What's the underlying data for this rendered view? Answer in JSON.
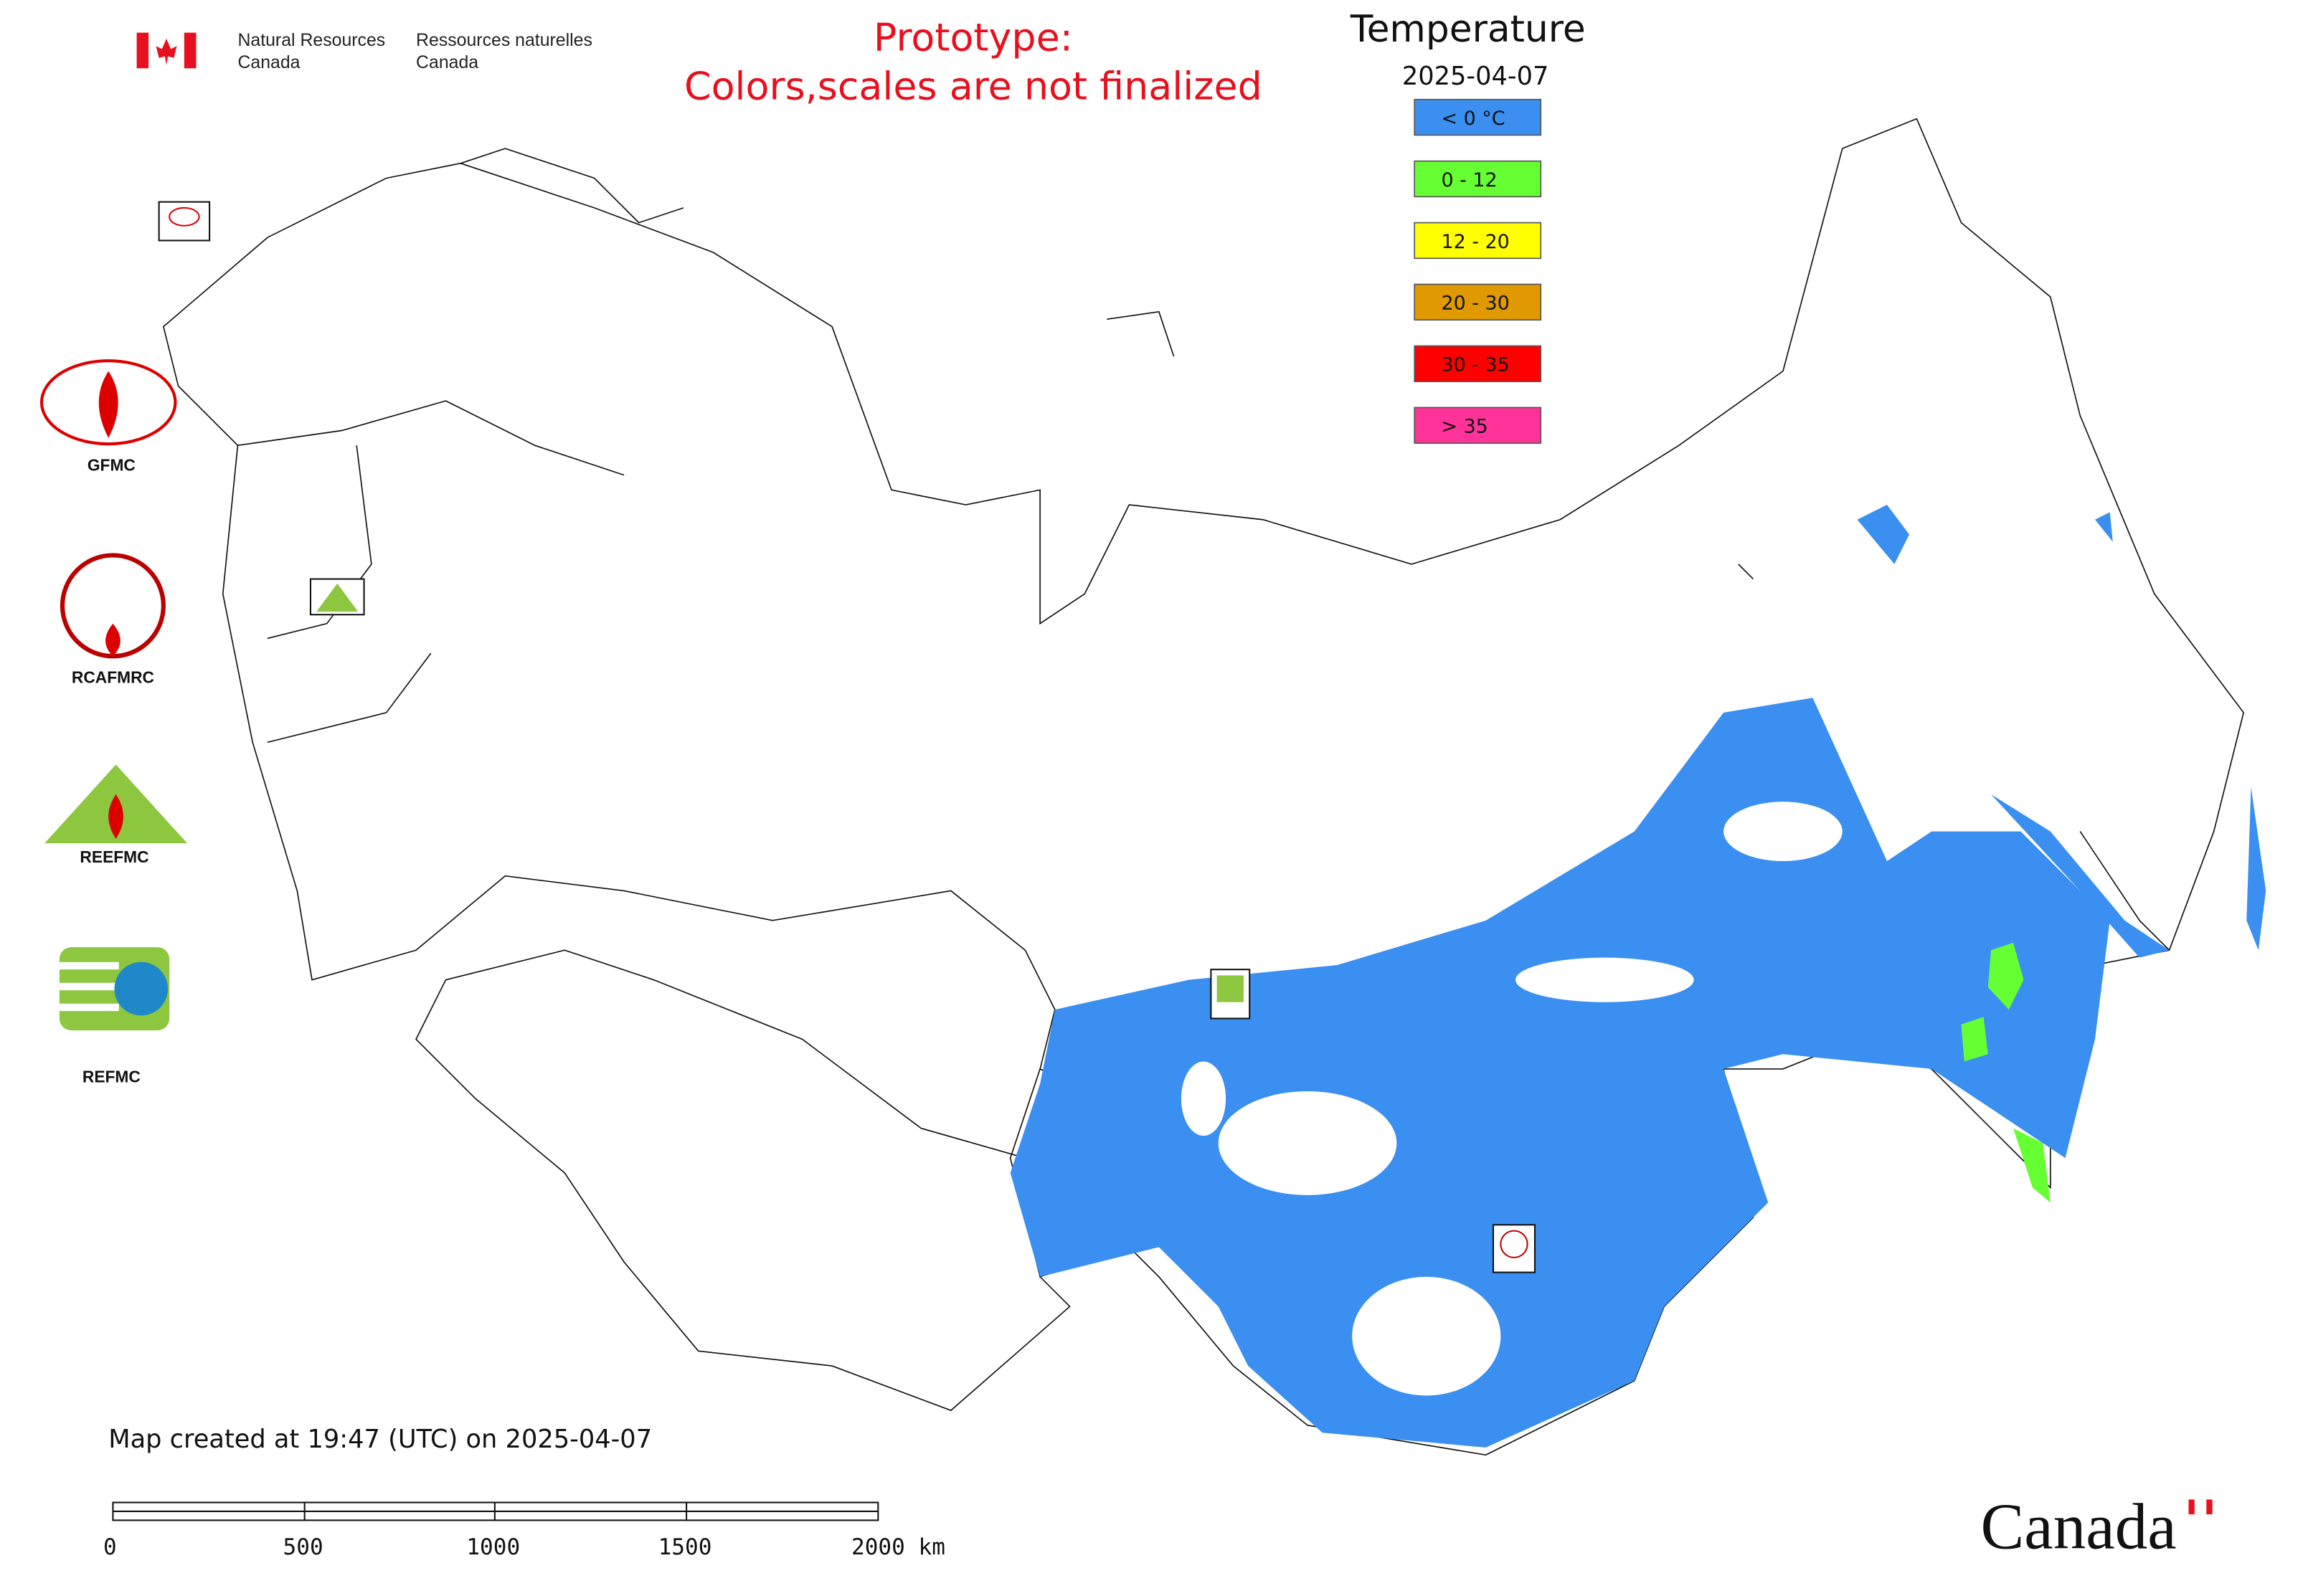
{
  "header": {
    "org_en": [
      "Natural Resources",
      "Canada"
    ],
    "org_fr": [
      "Ressources naturelles",
      "Canada"
    ]
  },
  "notice": [
    "Prototype:",
    "Colors,scales are not finalized"
  ],
  "legend": {
    "title": "Temperature",
    "date": "2025-04-07",
    "items": [
      {
        "label": "< 0 °C",
        "color": "#3a8ff0"
      },
      {
        "label": "0 - 12",
        "color": "#66ff33"
      },
      {
        "label": "12 - 20",
        "color": "#ffff00"
      },
      {
        "label": "20 - 30",
        "color": "#e09a00"
      },
      {
        "label": "30 - 35",
        "color": "#ff0000"
      },
      {
        "label": "> 35",
        "color": "#ff3399"
      }
    ]
  },
  "logos": [
    "GFMC",
    "RCAFMRC",
    "REEFMC",
    "REFMC"
  ],
  "footer": {
    "created": "Map created at 19:47 (UTC) on 2025-04-07",
    "scale_labels": [
      "0",
      "500",
      "1000",
      "1500",
      "2000 km"
    ],
    "wordmark": "Canada"
  }
}
